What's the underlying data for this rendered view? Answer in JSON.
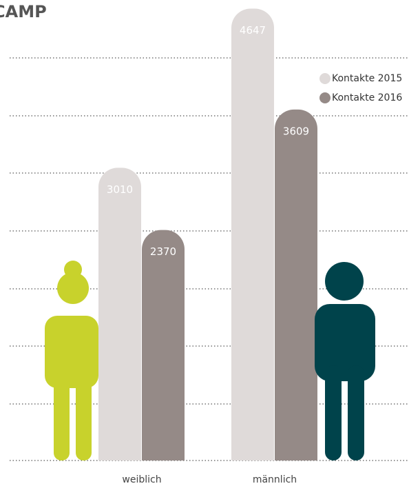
{
  "chart_data": {
    "type": "bar",
    "title": "CAMP",
    "categories": [
      "weiblich",
      "männlich"
    ],
    "series": [
      {
        "name": "Kontakte 2015",
        "color": "#dfdad9",
        "values": [
          3010,
          4647
        ]
      },
      {
        "name": "Kontakte 2016",
        "color": "#958a87",
        "values": [
          2370,
          3609
        ]
      }
    ],
    "ylim": [
      0,
      4700
    ],
    "legend": "top-right"
  }
}
